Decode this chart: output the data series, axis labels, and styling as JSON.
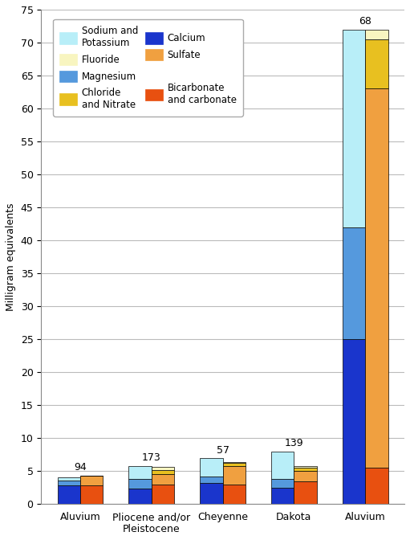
{
  "categories": [
    "Aluvium",
    "Pliocene and/or\nPleistocene",
    "Cheyenne",
    "Dakota",
    "Aluvium"
  ],
  "sample_labels": [
    "94",
    "173",
    "57",
    "139",
    "68"
  ],
  "bar_width": 0.32,
  "colors": {
    "sodium_potassium": "#b8eef8",
    "magnesium": "#5599dd",
    "calcium": "#1a35cc",
    "fluoride": "#f8f5c0",
    "chloride_nitrate": "#e8c020",
    "sulfate": "#f0a040",
    "bicarbonate": "#e85010"
  },
  "cations": {
    "calcium": [
      2.9,
      2.3,
      3.2,
      2.5,
      25.0
    ],
    "magnesium": [
      0.7,
      1.5,
      1.0,
      1.3,
      17.0
    ],
    "sodium_potassium": [
      0.5,
      2.0,
      2.8,
      4.2,
      30.0
    ]
  },
  "anions": {
    "bicarbonate": [
      2.8,
      3.0,
      3.0,
      3.5,
      5.5
    ],
    "sulfate": [
      1.5,
      1.5,
      2.8,
      1.5,
      57.5
    ],
    "chloride_nitrate": [
      0.05,
      0.7,
      0.5,
      0.5,
      7.5
    ],
    "fluoride": [
      0.0,
      0.5,
      0.1,
      0.3,
      1.5
    ]
  },
  "ylim": [
    0,
    75
  ],
  "yticks": [
    0,
    5,
    10,
    15,
    20,
    25,
    30,
    35,
    40,
    45,
    50,
    55,
    60,
    65,
    70,
    75
  ],
  "ylabel": "Milligram equivalents",
  "background_color": "#ffffff",
  "grid_color": "#bbbbbb",
  "legend_entries_col1": [
    "sodium_potassium",
    "magnesium",
    "calcium"
  ],
  "legend_entries_col2": [
    "fluoride",
    "chloride_nitrate",
    "sulfate",
    "bicarbonate"
  ],
  "legend_labels": {
    "sodium_potassium": "Sodium and\nPotassium",
    "magnesium": "Magnesium",
    "calcium": "Calcium",
    "fluoride": "Fluoride",
    "chloride_nitrate": "Chloride\nand Nitrate",
    "sulfate": "Sulfate",
    "bicarbonate": "Bicarbonate\nand carbonate"
  }
}
